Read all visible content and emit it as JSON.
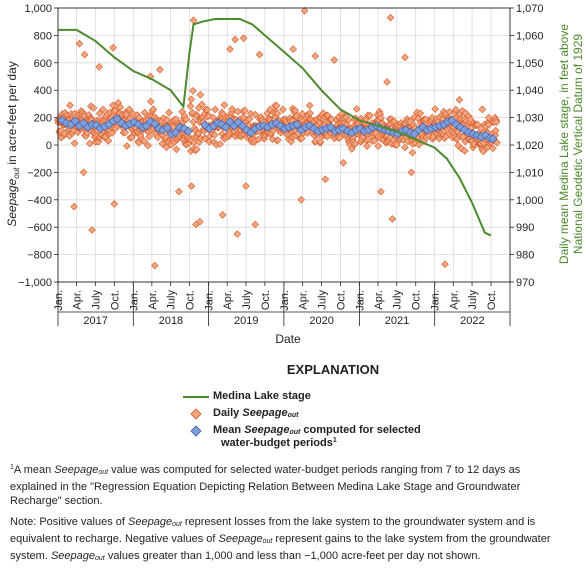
{
  "chart_data": {
    "type": "scatter",
    "xlabel": "Date",
    "ylabel": "in acre-feet per day",
    "ylabel_italic": "Seepage",
    "ylabel_sub": "out",
    "y2label_line1": "Daily mean Medina Lake stage, in feet above",
    "y2label_line2": "National Geodetic Vertical Datum of 1929",
    "ylim": [
      -1000,
      1000
    ],
    "y2lim": [
      970,
      1070
    ],
    "yticks": [
      "1,000",
      "800",
      "600",
      "400",
      "200",
      "0",
      "−200",
      "−400",
      "−600",
      "−800",
      "−1,000"
    ],
    "y2ticks": [
      "1,070",
      "1,060",
      "1,050",
      "1,040",
      "1,030",
      "1,020",
      "1,010",
      "1,000",
      "990",
      "980",
      "970"
    ],
    "month_labels": [
      "Jan.",
      "Apr.",
      "July",
      "Oct."
    ],
    "years": [
      "2017",
      "2018",
      "2019",
      "2020",
      "2021",
      "2022"
    ],
    "grid": true,
    "stage_series": {
      "name": "Medina Lake stage",
      "color": "#4d8a2e",
      "points": [
        [
          "2017-01-01",
          1062
        ],
        [
          "2017-04-01",
          1062
        ],
        [
          "2017-07-01",
          1058
        ],
        [
          "2017-10-01",
          1052
        ],
        [
          "2018-01-01",
          1047
        ],
        [
          "2018-04-01",
          1044
        ],
        [
          "2018-07-01",
          1040
        ],
        [
          "2018-09-01",
          1034
        ],
        [
          "2018-10-01",
          1054
        ],
        [
          "2018-10-20",
          1064
        ],
        [
          "2018-12-01",
          1065
        ],
        [
          "2019-02-01",
          1066
        ],
        [
          "2019-04-01",
          1066
        ],
        [
          "2019-06-01",
          1066
        ],
        [
          "2019-08-01",
          1064
        ],
        [
          "2019-10-01",
          1060
        ],
        [
          "2020-01-01",
          1054
        ],
        [
          "2020-04-01",
          1048
        ],
        [
          "2020-07-01",
          1040
        ],
        [
          "2020-10-01",
          1033
        ],
        [
          "2021-01-01",
          1029
        ],
        [
          "2021-04-01",
          1027
        ],
        [
          "2021-07-01",
          1025
        ],
        [
          "2021-10-01",
          1022
        ],
        [
          "2022-01-01",
          1019
        ],
        [
          "2022-03-01",
          1015
        ],
        [
          "2022-05-01",
          1008
        ],
        [
          "2022-07-01",
          999
        ],
        [
          "2022-09-01",
          988
        ],
        [
          "2022-10-01",
          987
        ]
      ]
    },
    "daily_series": {
      "name": "Daily Seepage out",
      "color": "#f4a57f",
      "stroke": "#d25b2a",
      "outliers": [
        [
          "2017-04-15",
          740
        ],
        [
          "2017-05-10",
          660
        ],
        [
          "2017-07-20",
          570
        ],
        [
          "2017-09-25",
          710
        ],
        [
          "2017-03-20",
          -450
        ],
        [
          "2017-06-15",
          -620
        ],
        [
          "2017-10-01",
          -430
        ],
        [
          "2017-05-05",
          -200
        ],
        [
          "2018-05-10",
          550
        ],
        [
          "2018-03-25",
          500
        ],
        [
          "2018-10-20",
          910
        ],
        [
          "2018-04-15",
          -880
        ],
        [
          "2018-08-10",
          -340
        ],
        [
          "2018-11-01",
          -580
        ],
        [
          "2018-11-20",
          -560
        ],
        [
          "2018-10-10",
          -300
        ],
        [
          "2019-05-10",
          770
        ],
        [
          "2019-06-20",
          780
        ],
        [
          "2019-04-15",
          700
        ],
        [
          "2019-09-05",
          660
        ],
        [
          "2019-05-20",
          -650
        ],
        [
          "2019-08-15",
          -580
        ],
        [
          "2019-03-10",
          -510
        ],
        [
          "2019-07-01",
          -300
        ],
        [
          "2020-04-10",
          980
        ],
        [
          "2020-02-15",
          700
        ],
        [
          "2020-06-01",
          650
        ],
        [
          "2020-09-01",
          620
        ],
        [
          "2020-03-25",
          -400
        ],
        [
          "2020-07-20",
          -250
        ],
        [
          "2020-10-15",
          -130
        ],
        [
          "2021-06-01",
          930
        ],
        [
          "2021-05-15",
          460
        ],
        [
          "2021-08-10",
          640
        ],
        [
          "2021-06-10",
          -540
        ],
        [
          "2021-04-15",
          -340
        ],
        [
          "2021-09-10",
          -200
        ],
        [
          "2022-02-20",
          -870
        ],
        [
          "2022-08-20",
          260
        ],
        [
          "2022-05-01",
          330
        ],
        [
          "2022-09-20",
          200
        ]
      ]
    },
    "mean_series": {
      "name": "Mean Seepage out computed for selected water-budget periods",
      "color": "#7f9fd9",
      "stroke": "#3a5aa8",
      "points": [
        [
          "2017-01-20",
          180
        ],
        [
          "2017-02-10",
          160
        ],
        [
          "2017-03-05",
          150
        ],
        [
          "2017-03-25",
          175
        ],
        [
          "2017-04-15",
          140
        ],
        [
          "2017-05-05",
          160
        ],
        [
          "2017-05-25",
          130
        ],
        [
          "2017-06-15",
          150
        ],
        [
          "2017-07-05",
          145
        ],
        [
          "2017-07-25",
          120
        ],
        [
          "2017-08-15",
          135
        ],
        [
          "2017-09-05",
          150
        ],
        [
          "2017-09-25",
          175
        ],
        [
          "2017-10-15",
          190
        ],
        [
          "2017-11-05",
          160
        ],
        [
          "2017-11-25",
          140
        ],
        [
          "2017-12-15",
          155
        ],
        [
          "2018-01-05",
          165
        ],
        [
          "2018-01-25",
          150
        ],
        [
          "2018-02-15",
          130
        ],
        [
          "2018-03-05",
          140
        ],
        [
          "2018-03-25",
          170
        ],
        [
          "2018-04-15",
          155
        ],
        [
          "2018-05-05",
          120
        ],
        [
          "2018-05-25",
          110
        ],
        [
          "2018-06-15",
          125
        ],
        [
          "2018-07-05",
          80
        ],
        [
          "2018-07-25",
          90
        ],
        [
          "2018-08-15",
          130
        ],
        [
          "2018-09-05",
          120
        ],
        [
          "2018-09-25",
          100
        ],
        [
          "2018-12-15",
          145
        ],
        [
          "2019-01-05",
          120
        ],
        [
          "2019-01-25",
          140
        ],
        [
          "2019-02-15",
          160
        ],
        [
          "2019-03-05",
          150
        ],
        [
          "2019-03-25",
          130
        ],
        [
          "2019-04-15",
          170
        ],
        [
          "2019-05-05",
          140
        ],
        [
          "2019-05-25",
          165
        ],
        [
          "2019-06-15",
          140
        ],
        [
          "2019-07-05",
          110
        ],
        [
          "2019-07-25",
          90
        ],
        [
          "2019-08-15",
          120
        ],
        [
          "2019-09-05",
          135
        ],
        [
          "2019-09-25",
          140
        ],
        [
          "2019-10-15",
          130
        ],
        [
          "2019-11-05",
          150
        ],
        [
          "2019-11-25",
          160
        ],
        [
          "2019-12-15",
          140
        ],
        [
          "2020-01-05",
          120
        ],
        [
          "2020-01-25",
          130
        ],
        [
          "2020-02-15",
          140
        ],
        [
          "2020-03-05",
          150
        ],
        [
          "2020-03-25",
          110
        ],
        [
          "2020-04-15",
          130
        ],
        [
          "2020-05-05",
          140
        ],
        [
          "2020-05-25",
          120
        ],
        [
          "2020-06-15",
          100
        ],
        [
          "2020-07-05",
          110
        ],
        [
          "2020-07-25",
          120
        ],
        [
          "2020-08-15",
          130
        ],
        [
          "2020-09-05",
          100
        ],
        [
          "2020-09-25",
          110
        ],
        [
          "2020-10-15",
          120
        ],
        [
          "2020-11-05",
          100
        ],
        [
          "2020-11-25",
          90
        ],
        [
          "2020-12-15",
          110
        ],
        [
          "2021-01-05",
          120
        ],
        [
          "2021-01-25",
          100
        ],
        [
          "2021-02-15",
          110
        ],
        [
          "2021-03-05",
          130
        ],
        [
          "2021-03-25",
          140
        ],
        [
          "2021-04-15",
          120
        ],
        [
          "2021-05-05",
          110
        ],
        [
          "2021-05-25",
          100
        ],
        [
          "2021-06-15",
          90
        ],
        [
          "2021-07-05",
          80
        ],
        [
          "2021-07-25",
          100
        ],
        [
          "2021-08-15",
          110
        ],
        [
          "2021-09-05",
          90
        ],
        [
          "2021-09-25",
          80
        ],
        [
          "2021-10-15",
          110
        ],
        [
          "2021-11-05",
          130
        ],
        [
          "2021-11-25",
          110
        ],
        [
          "2021-12-15",
          120
        ],
        [
          "2022-01-05",
          130
        ],
        [
          "2022-01-25",
          140
        ],
        [
          "2022-02-15",
          150
        ],
        [
          "2022-03-05",
          170
        ],
        [
          "2022-03-25",
          180
        ],
        [
          "2022-04-15",
          150
        ],
        [
          "2022-05-05",
          130
        ],
        [
          "2022-05-25",
          110
        ],
        [
          "2022-06-15",
          90
        ],
        [
          "2022-07-05",
          80
        ],
        [
          "2022-07-25",
          70
        ],
        [
          "2022-08-15",
          60
        ],
        [
          "2022-09-05",
          70
        ],
        [
          "2022-09-25",
          50
        ],
        [
          "2022-10-10",
          45
        ]
      ]
    }
  },
  "legend": {
    "title": "EXPLANATION",
    "stage_label": "Medina Lake stage",
    "daily_label": "Daily",
    "daily_italic": "Seepage",
    "daily_sub": "out",
    "mean_label_a": "Mean",
    "mean_italic": "Seepage",
    "mean_sub": "out",
    "mean_label_b": "computed for selected",
    "mean_label_line2": "water-budget periods",
    "mean_sup": "1"
  },
  "notes": {
    "fn_sup": "1",
    "fn_a": "A mean",
    "fn_italic": "Seepage",
    "fn_sub": "out",
    "fn_b": "value was computed for selected water-budget periods ranging from 7 to 12 days as explained in the \"Regression Equation Depicting Relation Between Medina Lake Stage and Groundwater Recharge\" section.",
    "n_a": "Note: Positive values of",
    "n_it1": "Seepage",
    "n_sub1": "out",
    "n_b": "represent losses from the lake system to the groundwater system and is equivalent to recharge. Negative values of",
    "n_it2": "Seepage",
    "n_sub2": "out",
    "n_c": "represent gains to the lake system from the groundwater system.",
    "n_it3": "Seepage",
    "n_sub3": "out",
    "n_d": "values greater than 1,000 and less than −1,000 acre-feet per day not shown."
  }
}
